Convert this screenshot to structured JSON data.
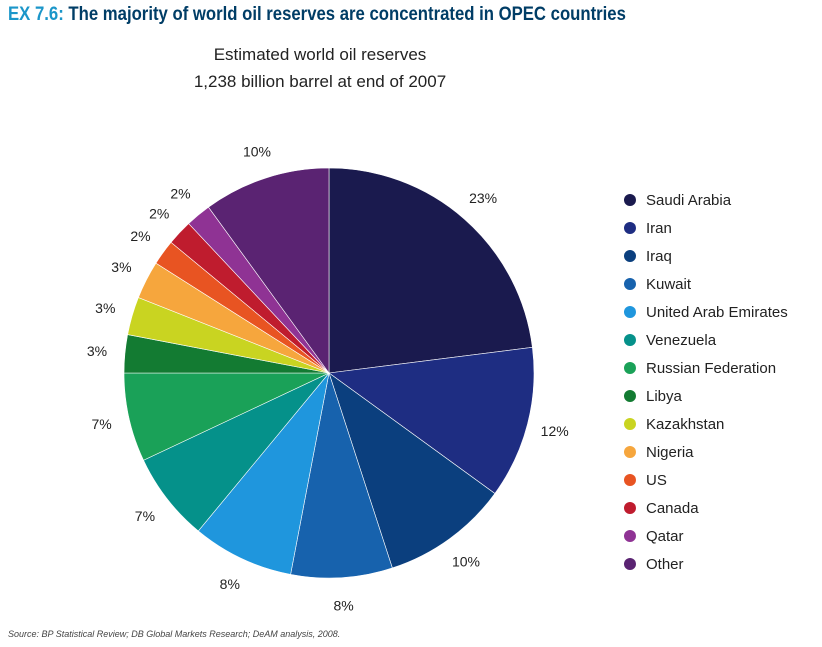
{
  "header": {
    "code": "EX 7.6:",
    "text": "The majority of world oil reserves are concentrated in OPEC countries"
  },
  "chart_data": {
    "type": "pie",
    "title": "Estimated world oil reserves",
    "subtitle": "1,238 billion barrel at end of 2007",
    "unit": "%",
    "legend_position": "right",
    "slices": [
      {
        "label": "Saudi Arabia",
        "value": 23,
        "value_label": "23%",
        "color": "#1a1a4e"
      },
      {
        "label": "Iran",
        "value": 12,
        "value_label": "12%",
        "color": "#1e2d82"
      },
      {
        "label": "Iraq",
        "value": 10,
        "value_label": "10%",
        "color": "#0b3f7e"
      },
      {
        "label": "Kuwait",
        "value": 8,
        "value_label": "8%",
        "color": "#1762ad"
      },
      {
        "label": "United Arab Emirates",
        "value": 8,
        "value_label": "8%",
        "color": "#1f96dd"
      },
      {
        "label": "Venezuela",
        "value": 7,
        "value_label": "7%",
        "color": "#05918a"
      },
      {
        "label": "Russian Federation",
        "value": 7,
        "value_label": "7%",
        "color": "#1aa158"
      },
      {
        "label": "Libya",
        "value": 3,
        "value_label": "3%",
        "color": "#137b32"
      },
      {
        "label": "Kazakhstan",
        "value": 3,
        "value_label": "3%",
        "color": "#c9d421"
      },
      {
        "label": "Nigeria",
        "value": 3,
        "value_label": "3%",
        "color": "#f6a63d"
      },
      {
        "label": "US",
        "value": 2,
        "value_label": "2%",
        "color": "#e85422"
      },
      {
        "label": "Canada",
        "value": 2,
        "value_label": "2%",
        "color": "#bf1c2e"
      },
      {
        "label": "Qatar",
        "value": 2,
        "value_label": "2%",
        "color": "#8f3394"
      },
      {
        "label": "Other",
        "value": 10,
        "value_label": "10%",
        "color": "#5a2372"
      }
    ]
  },
  "source": "Source: BP Statistical Review; DB Global Markets Research; DeAM analysis, 2008."
}
